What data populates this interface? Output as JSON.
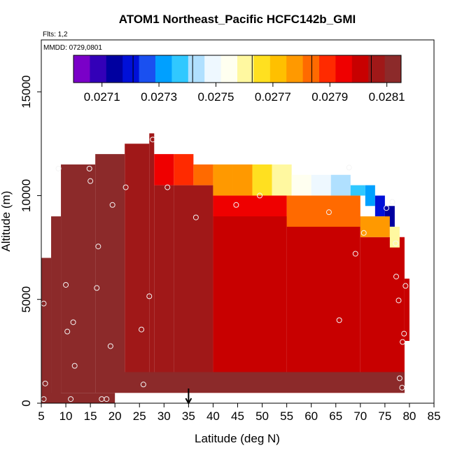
{
  "chart_data": {
    "type": "heatmap",
    "title": "ATOM1 Northeast_Pacific HCFC142b_GMI",
    "flights_label": "Flts: 1,2",
    "dates_label": "MMDD: 0729,0801",
    "xlabel": "Latitude (deg N)",
    "ylabel": "Altitude (m)",
    "xlim": [
      5,
      85
    ],
    "ylim": [
      0,
      17500
    ],
    "x_ticks": [
      "5",
      "10",
      "15",
      "20",
      "25",
      "30",
      "35",
      "40",
      "45",
      "50",
      "55",
      "60",
      "65",
      "70",
      "75",
      "80",
      "85"
    ],
    "y_ticks": [
      "0",
      "5000",
      "10000",
      "15000"
    ],
    "colorbar": {
      "ticks": [
        "0.0271",
        "0.0273",
        "0.0275",
        "0.0277",
        "0.0279",
        "0.0281"
      ],
      "range": [
        0.027,
        0.02815
      ]
    },
    "arrow_latitude": 35,
    "colors": {
      "palette": [
        "#7a00c8",
        "#3300b8",
        "#0000a0",
        "#0010d8",
        "#1a50f0",
        "#00a0ff",
        "#30c8ff",
        "#b0e0ff",
        "#eef8ff",
        "#fffff0",
        "#fff8a0",
        "#ffe020",
        "#ffc000",
        "#ff9900",
        "#ff6a00",
        "#ff2a00",
        "#ef0000",
        "#c80000",
        "#a01818",
        "#8c2a2a"
      ]
    },
    "cells": [
      {
        "lat_range": [
          5,
          7
        ],
        "alt_range": [
          0,
          7000
        ],
        "value": 0.02812
      },
      {
        "lat_range": [
          7,
          9
        ],
        "alt_range": [
          0,
          9000
        ],
        "value": 0.02812
      },
      {
        "lat_range": [
          9,
          16
        ],
        "alt_range": [
          500,
          11500
        ],
        "value": 0.02811
      },
      {
        "lat_range": [
          16,
          22
        ],
        "alt_range": [
          500,
          12000
        ],
        "value": 0.0281
      },
      {
        "lat_range": [
          22,
          27
        ],
        "alt_range": [
          500,
          12500
        ],
        "value": 0.02808
      },
      {
        "lat_range": [
          27,
          28
        ],
        "alt_range": [
          500,
          13000
        ],
        "value": 0.02809
      },
      {
        "lat_range": [
          28,
          32
        ],
        "alt_range": [
          500,
          10500
        ],
        "value": 0.02807
      },
      {
        "lat_range": [
          32,
          40
        ],
        "alt_range": [
          500,
          10500
        ],
        "value": 0.02805
      },
      {
        "lat_range": [
          40,
          55
        ],
        "alt_range": [
          500,
          10000
        ],
        "value": 0.02803
      },
      {
        "lat_range": [
          55,
          70
        ],
        "alt_range": [
          500,
          9000
        ],
        "value": 0.02802
      },
      {
        "lat_range": [
          70,
          79
        ],
        "alt_range": [
          500,
          8000
        ],
        "value": 0.028
      },
      {
        "lat_range": [
          79,
          80
        ],
        "alt_range": [
          3000,
          6000
        ],
        "value": 0.02803
      },
      {
        "lat_range": [
          28,
          32
        ],
        "alt_range": [
          10500,
          12000
        ],
        "value": 0.02795
      },
      {
        "lat_range": [
          32,
          36
        ],
        "alt_range": [
          10500,
          12000
        ],
        "value": 0.0279
      },
      {
        "lat_range": [
          36,
          40
        ],
        "alt_range": [
          10500,
          11500
        ],
        "value": 0.02786
      },
      {
        "lat_range": [
          40,
          44
        ],
        "alt_range": [
          10000,
          11500
        ],
        "value": 0.0278
      },
      {
        "lat_range": [
          44,
          48
        ],
        "alt_range": [
          10000,
          11500
        ],
        "value": 0.02775
      },
      {
        "lat_range": [
          48,
          52
        ],
        "alt_range": [
          10000,
          11500
        ],
        "value": 0.02768
      },
      {
        "lat_range": [
          52,
          56
        ],
        "alt_range": [
          10000,
          11500
        ],
        "value": 0.02762
      },
      {
        "lat_range": [
          56,
          60
        ],
        "alt_range": [
          10000,
          11000
        ],
        "value": 0.02755
      },
      {
        "lat_range": [
          60,
          64
        ],
        "alt_range": [
          10000,
          11000
        ],
        "value": 0.0275
      },
      {
        "lat_range": [
          64,
          68
        ],
        "alt_range": [
          10000,
          11000
        ],
        "value": 0.02745
      },
      {
        "lat_range": [
          68,
          71
        ],
        "alt_range": [
          10000,
          10500
        ],
        "value": 0.0274
      },
      {
        "lat_range": [
          71,
          73
        ],
        "alt_range": [
          9500,
          10500
        ],
        "value": 0.0273
      },
      {
        "lat_range": [
          73,
          75
        ],
        "alt_range": [
          9000,
          10000
        ],
        "value": 0.0272
      },
      {
        "lat_range": [
          75,
          77
        ],
        "alt_range": [
          8500,
          9500
        ],
        "value": 0.02712
      },
      {
        "lat_range": [
          40,
          55
        ],
        "alt_range": [
          9000,
          10000
        ],
        "value": 0.02795
      },
      {
        "lat_range": [
          55,
          70
        ],
        "alt_range": [
          8500,
          10000
        ],
        "value": 0.02785
      },
      {
        "lat_range": [
          70,
          76
        ],
        "alt_range": [
          8000,
          9000
        ],
        "value": 0.02775
      },
      {
        "lat_range": [
          76,
          78
        ],
        "alt_range": [
          7500,
          8500
        ],
        "value": 0.0276
      },
      {
        "lat_range": [
          5,
          20
        ],
        "alt_range": [
          0,
          500
        ],
        "value": 0.02813
      },
      {
        "lat_range": [
          20,
          79
        ],
        "alt_range": [
          500,
          1500
        ],
        "value": 0.0281
      }
    ],
    "points": [
      {
        "x": 5.5,
        "y": 4800
      },
      {
        "x": 5.5,
        "y": 200
      },
      {
        "x": 5.8,
        "y": 950
      },
      {
        "x": 8.5,
        "y": 11300
      },
      {
        "x": 10,
        "y": 5700
      },
      {
        "x": 10.3,
        "y": 3450
      },
      {
        "x": 11,
        "y": 200
      },
      {
        "x": 11.5,
        "y": 3900
      },
      {
        "x": 11.8,
        "y": 1800
      },
      {
        "x": 14.8,
        "y": 11300
      },
      {
        "x": 15,
        "y": 10700
      },
      {
        "x": 16.3,
        "y": 5550
      },
      {
        "x": 16.6,
        "y": 7550
      },
      {
        "x": 17.3,
        "y": 200
      },
      {
        "x": 18.3,
        "y": 200
      },
      {
        "x": 19.1,
        "y": 2750
      },
      {
        "x": 19.5,
        "y": 9550
      },
      {
        "x": 22.2,
        "y": 10400
      },
      {
        "x": 25.4,
        "y": 3550
      },
      {
        "x": 25.8,
        "y": 900
      },
      {
        "x": 27,
        "y": 5150
      },
      {
        "x": 27.7,
        "y": 12700
      },
      {
        "x": 30.7,
        "y": 10400
      },
      {
        "x": 36.5,
        "y": 8950
      },
      {
        "x": 44.7,
        "y": 9550
      },
      {
        "x": 49.5,
        "y": 10000
      },
      {
        "x": 63.6,
        "y": 9200
      },
      {
        "x": 65.7,
        "y": 4000
      },
      {
        "x": 67.7,
        "y": 11350
      },
      {
        "x": 69,
        "y": 7200
      },
      {
        "x": 70.7,
        "y": 8200
      },
      {
        "x": 75.3,
        "y": 9400
      },
      {
        "x": 76.5,
        "y": 9700
      },
      {
        "x": 77.2,
        "y": 7700
      },
      {
        "x": 77.3,
        "y": 6100
      },
      {
        "x": 77.8,
        "y": 4950
      },
      {
        "x": 78,
        "y": 1200
      },
      {
        "x": 78.5,
        "y": 750
      },
      {
        "x": 78.6,
        "y": 2950
      },
      {
        "x": 78.9,
        "y": 3350
      },
      {
        "x": 79.2,
        "y": 5650
      }
    ]
  }
}
